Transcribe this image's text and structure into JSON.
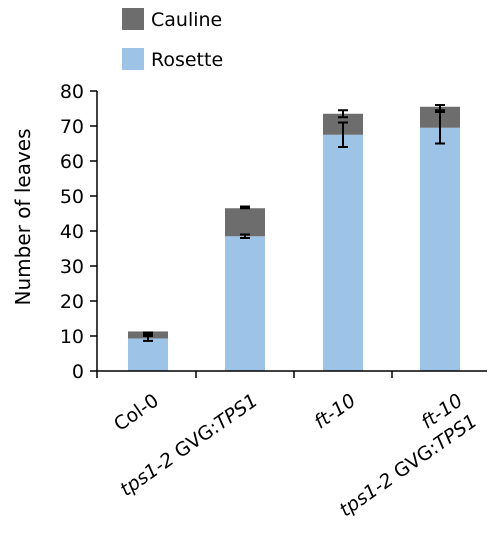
{
  "chart_data": {
    "type": "bar",
    "stacked": true,
    "ylabel": "Number of leaves",
    "ylim": [
      0,
      80
    ],
    "yticks": [
      0,
      10,
      20,
      30,
      40,
      50,
      60,
      70,
      80
    ],
    "categories": [
      {
        "lines": [
          [
            {
              "t": "Col-0",
              "i": false
            }
          ]
        ]
      },
      {
        "lines": [
          [
            {
              "t": "tps1-2",
              "i": true
            },
            {
              "t": " GVG:",
              "i": false
            },
            {
              "t": "TPS1",
              "i": true
            }
          ]
        ]
      },
      {
        "lines": [
          [
            {
              "t": "ft-10",
              "i": true
            }
          ]
        ]
      },
      {
        "lines": [
          [
            {
              "t": "ft-10",
              "i": true
            }
          ],
          [
            {
              "t": "tps1-2",
              "i": true
            },
            {
              "t": " GVG:",
              "i": false
            },
            {
              "t": "TPS1",
              "i": true
            }
          ]
        ]
      }
    ],
    "series": [
      {
        "name": "Rosette",
        "color": "#9dc3e6",
        "values": [
          9.3,
          38.5,
          67.5,
          69.5
        ],
        "err_low": [
          8.6,
          38.0,
          64.0,
          65.0
        ],
        "err_high": [
          10.0,
          39.0,
          71.0,
          74.0
        ]
      },
      {
        "name": "Cauline",
        "color": "#6d6d6d",
        "values": [
          2.0,
          8.0,
          6.0,
          6.0
        ],
        "err_low": [
          10.5,
          46.5,
          72.5,
          74.5
        ],
        "err_high": [
          11.0,
          47.0,
          74.5,
          76.0
        ]
      }
    ],
    "legend": {
      "placement": "top-left",
      "order": [
        "Cauline",
        "Rosette"
      ]
    },
    "grid": false
  }
}
